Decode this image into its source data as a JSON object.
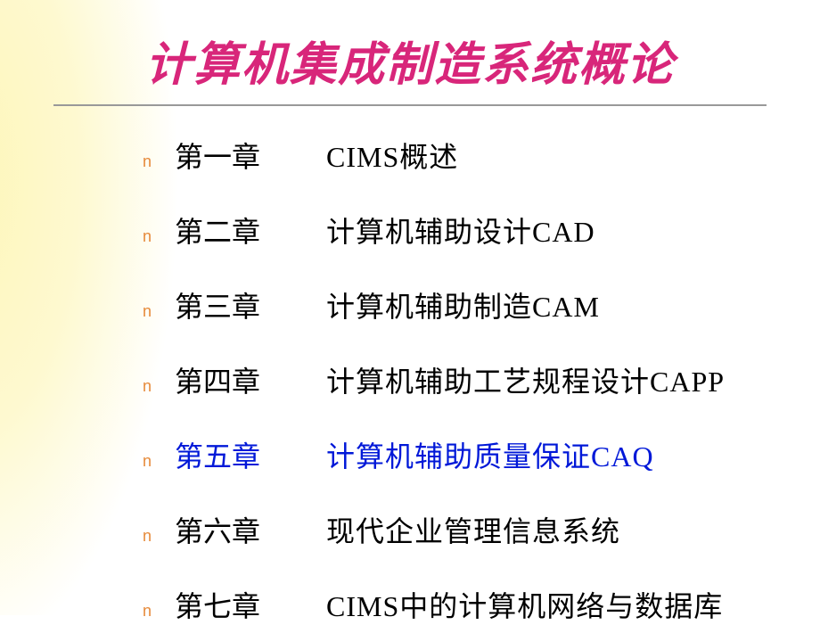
{
  "title": "计算机集成制造系统概论",
  "colors": {
    "title_color": "#d8267a",
    "bullet_color": "#e68a3a",
    "text_color": "#000000",
    "highlight_color": "#0018d8",
    "underline_color": "#999999",
    "background": "#ffffff",
    "gradient_from": "#fdf6b8"
  },
  "typography": {
    "title_fontsize": 52,
    "body_fontsize": 32,
    "bullet_fontsize": 18
  },
  "bullet_glyph": "n",
  "highlighted_index": 4,
  "chapters": [
    {
      "label": "第一章",
      "content": "CIMS概述"
    },
    {
      "label": "第二章",
      "content": "计算机辅助设计CAD"
    },
    {
      "label": "第三章",
      "content": "计算机辅助制造CAM"
    },
    {
      "label": "第四章",
      "content": "计算机辅助工艺规程设计CAPP"
    },
    {
      "label": "第五章",
      "content": "计算机辅助质量保证CAQ"
    },
    {
      "label": "第六章",
      "content": "现代企业管理信息系统"
    },
    {
      "label": "第七章",
      "content": "CIMS中的计算机网络与数据库"
    }
  ]
}
